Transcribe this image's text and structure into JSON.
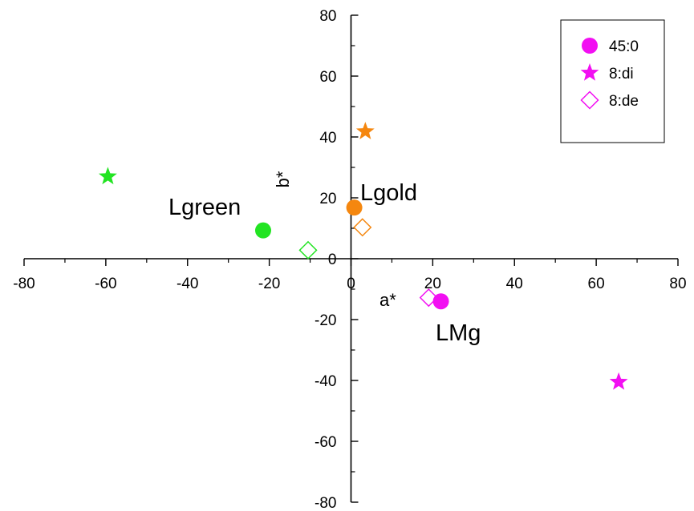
{
  "chart_data": {
    "type": "scatter",
    "xlabel": "a*",
    "ylabel": "b*",
    "xlim": [
      -80,
      80
    ],
    "ylim": [
      -80,
      80
    ],
    "x_ticks": [
      -80,
      -60,
      -40,
      -20,
      0,
      20,
      40,
      60,
      80
    ],
    "y_ticks": [
      -80,
      -60,
      -40,
      -20,
      0,
      20,
      40,
      60,
      80
    ],
    "grid": false,
    "legend_position": "top-right",
    "series": [
      {
        "name": "45:0",
        "marker": "circle",
        "points": [
          {
            "x": -21.5,
            "y": 9.3,
            "color": "#22e422"
          },
          {
            "x": 0.8,
            "y": 16.8,
            "color": "#f5870f"
          },
          {
            "x": 22.0,
            "y": -14.0,
            "color": "#f20ff2"
          }
        ]
      },
      {
        "name": "8:di",
        "marker": "star",
        "points": [
          {
            "x": -59.5,
            "y": 27.0,
            "color": "#22e422"
          },
          {
            "x": 3.5,
            "y": 41.8,
            "color": "#f5870f"
          },
          {
            "x": 65.5,
            "y": -40.5,
            "color": "#f20ff2"
          }
        ]
      },
      {
        "name": "8:de",
        "marker": "diamond-open",
        "points": [
          {
            "x": -10.5,
            "y": 2.8,
            "color": "#22e422"
          },
          {
            "x": 2.8,
            "y": 10.3,
            "color": "#f5870f"
          },
          {
            "x": 19.0,
            "y": -12.8,
            "color": "#f20ff2"
          }
        ]
      }
    ],
    "annotations": [
      {
        "text": "Lgreen"
      },
      {
        "text": "Lgold"
      },
      {
        "text": "LMg"
      }
    ],
    "legend": {
      "entries": [
        {
          "label": "45:0",
          "marker": "circle",
          "color": "#f20ff2"
        },
        {
          "label": "8:di",
          "marker": "star",
          "color": "#f20ff2"
        },
        {
          "label": "8:de",
          "marker": "diamond-open",
          "color": "#f20ff2"
        }
      ]
    }
  }
}
